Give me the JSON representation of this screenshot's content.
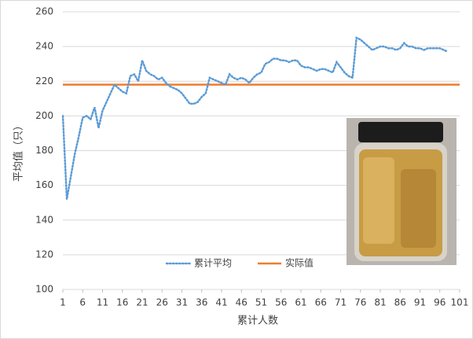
{
  "chart_data": {
    "type": "line",
    "x_label": "累计人数",
    "y_label": "平均值（只）",
    "x": [
      1,
      2,
      3,
      4,
      5,
      6,
      7,
      8,
      9,
      10,
      11,
      12,
      13,
      14,
      15,
      16,
      17,
      18,
      19,
      20,
      21,
      22,
      23,
      24,
      25,
      26,
      27,
      28,
      29,
      30,
      31,
      32,
      33,
      34,
      35,
      36,
      37,
      38,
      39,
      40,
      41,
      42,
      43,
      44,
      45,
      46,
      47,
      48,
      49,
      50,
      51,
      52,
      53,
      54,
      55,
      56,
      57,
      58,
      59,
      60,
      61,
      62,
      63,
      64,
      65,
      66,
      67,
      68,
      69,
      70,
      71,
      72,
      73,
      74,
      75,
      76,
      77,
      78,
      79,
      80,
      81,
      82,
      83,
      84,
      85,
      86,
      87,
      88,
      89,
      90,
      91,
      92,
      93,
      94,
      95,
      96,
      97,
      98
    ],
    "series": [
      {
        "name": "累计平均",
        "color": "#5b9bd5",
        "values": [
          200,
          152,
          165,
          178,
          188,
          199,
          200,
          198,
          205,
          193,
          203,
          208,
          213,
          218,
          216,
          214,
          213,
          223,
          224,
          220,
          232,
          226,
          224,
          223,
          221,
          222,
          219,
          217,
          216,
          215,
          213,
          210,
          207,
          207,
          208,
          211,
          213,
          222,
          221,
          220,
          219,
          218,
          224,
          222,
          221,
          222,
          221,
          219,
          222,
          224,
          225,
          230,
          231,
          233,
          233,
          232,
          232,
          231,
          232,
          232,
          229,
          228,
          228,
          227,
          226,
          227,
          227,
          226,
          225,
          231,
          228,
          225,
          223,
          222,
          245,
          244,
          242,
          240,
          238,
          239,
          240,
          240,
          239,
          239,
          238,
          239,
          242,
          240,
          240,
          239,
          239,
          238,
          239,
          239,
          239,
          239,
          238,
          237
        ]
      }
    ],
    "reference": {
      "name": "实际值",
      "color": "#ed7d31",
      "value": 218
    },
    "xlim": [
      1,
      101
    ],
    "xticks": [
      1,
      6,
      11,
      16,
      21,
      26,
      31,
      36,
      41,
      46,
      51,
      56,
      61,
      66,
      71,
      76,
      81,
      86,
      91,
      96,
      101
    ],
    "ylim": [
      100,
      260
    ],
    "yticks": [
      100,
      120,
      140,
      160,
      180,
      200,
      220,
      240,
      260
    ],
    "grid": true
  }
}
